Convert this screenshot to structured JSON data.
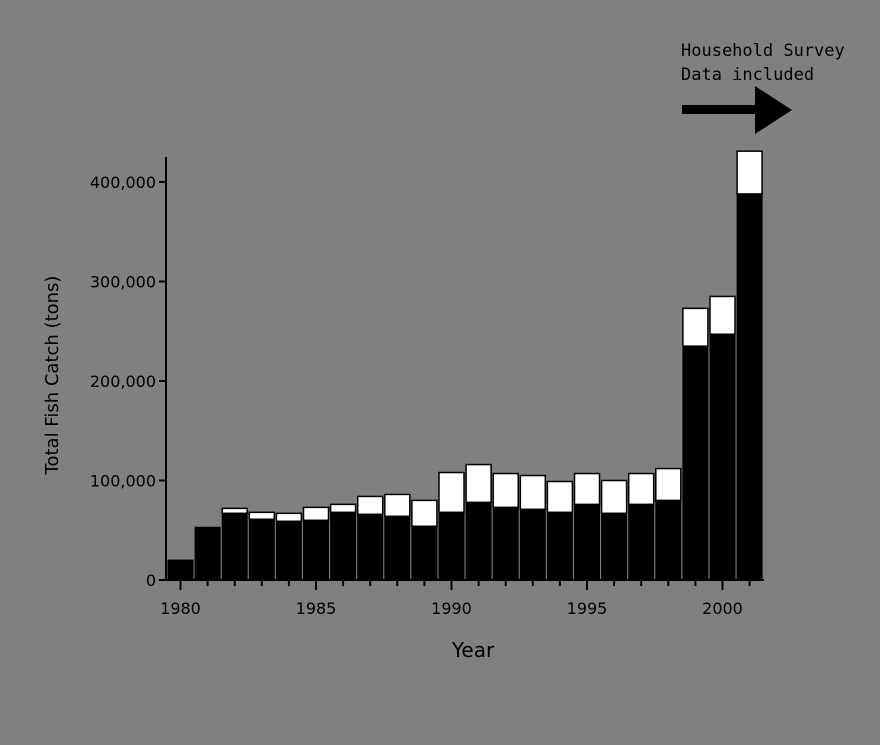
{
  "chart_data": {
    "type": "bar",
    "stacked": true,
    "xlabel": "Year",
    "ylabel": "Total Fish Catch (tons)",
    "ylim": [
      0,
      400000
    ],
    "ytick_labels": [
      "0",
      "100,000",
      "200,000",
      "300,000",
      "400,000"
    ],
    "ytick_values": [
      0,
      100000,
      200000,
      300000,
      400000
    ],
    "xtick_labels": [
      "1980",
      "1985",
      "1990",
      "1995",
      "2000"
    ],
    "xtick_values": [
      1980,
      1985,
      1990,
      1995,
      2000
    ],
    "annotation": {
      "line1": "Household Survey",
      "line2": "Data included",
      "arrow": "right"
    },
    "grid": false,
    "legend": "none",
    "colors": {
      "background": "#808080",
      "lower_series": "#000000",
      "upper_series": "#ffffff",
      "axis": "#000000"
    },
    "x": [
      1980,
      1981,
      1982,
      1983,
      1984,
      1985,
      1986,
      1987,
      1988,
      1989,
      1990,
      1991,
      1992,
      1993,
      1994,
      1995,
      1996,
      1997,
      1998,
      1999,
      2000,
      2001
    ],
    "series": [
      {
        "values": [
          20000,
          53000,
          67000,
          61000,
          59000,
          60000,
          68000,
          66000,
          64000,
          54000,
          68000,
          78000,
          73000,
          71000,
          68000,
          76000,
          67000,
          76000,
          80000,
          235000,
          247000,
          388000
        ]
      },
      {
        "values": [
          0,
          0,
          5000,
          7000,
          8000,
          13000,
          8000,
          18000,
          22000,
          26000,
          40000,
          38000,
          34000,
          34000,
          31000,
          31000,
          33000,
          31000,
          32000,
          38000,
          38000,
          43000
        ]
      }
    ]
  }
}
